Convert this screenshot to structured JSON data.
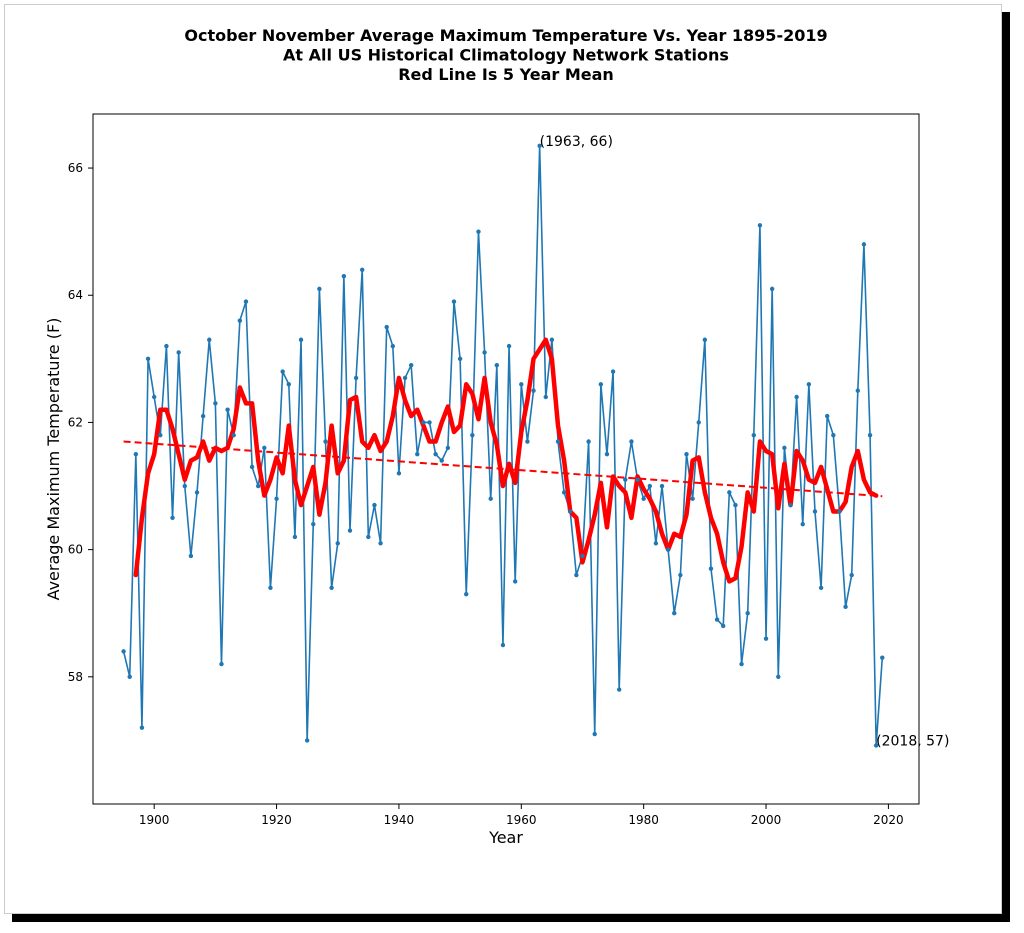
{
  "chart_data": {
    "type": "line",
    "title_lines": [
      "October November Average Maximum Temperature Vs. Year 1895-2019",
      "At All US Historical Climatology Network Stations",
      "Red Line Is 5 Year Mean"
    ],
    "xlabel": "Year",
    "ylabel": "Average Maximum Temperature (F)",
    "xlim": [
      1890,
      2025
    ],
    "ylim": [
      56.0,
      66.85
    ],
    "xticks": [
      1900,
      1920,
      1940,
      1960,
      1980,
      2000,
      2020
    ],
    "yticks": [
      58,
      60,
      62,
      64,
      66
    ],
    "grid": false,
    "colors": {
      "raw": "#1f77b4",
      "mean": "#ff0000",
      "trend": "#ff0000"
    },
    "annotations": [
      {
        "text": "(1963, 66)",
        "x": 1963,
        "y": 66.35
      },
      {
        "text": "(2018, 57)",
        "x": 2018,
        "y": 56.92
      }
    ],
    "series": [
      {
        "style": "line-markers",
        "x": [
          1895,
          1896,
          1897,
          1898,
          1899,
          1900,
          1901,
          1902,
          1903,
          1904,
          1905,
          1906,
          1907,
          1908,
          1909,
          1910,
          1911,
          1912,
          1913,
          1914,
          1915,
          1916,
          1917,
          1918,
          1919,
          1920,
          1921,
          1922,
          1923,
          1924,
          1925,
          1926,
          1927,
          1928,
          1929,
          1930,
          1931,
          1932,
          1933,
          1934,
          1935,
          1936,
          1937,
          1938,
          1939,
          1940,
          1941,
          1942,
          1943,
          1944,
          1945,
          1946,
          1947,
          1948,
          1949,
          1950,
          1951,
          1952,
          1953,
          1954,
          1955,
          1956,
          1957,
          1958,
          1959,
          1960,
          1961,
          1962,
          1963,
          1964,
          1965,
          1966,
          1967,
          1968,
          1969,
          1970,
          1971,
          1972,
          1973,
          1974,
          1975,
          1976,
          1977,
          1978,
          1979,
          1980,
          1981,
          1982,
          1983,
          1984,
          1985,
          1986,
          1987,
          1988,
          1989,
          1990,
          1991,
          1992,
          1993,
          1994,
          1995,
          1996,
          1997,
          1998,
          1999,
          2000,
          2001,
          2002,
          2003,
          2004,
          2005,
          2006,
          2007,
          2008,
          2009,
          2010,
          2011,
          2012,
          2013,
          2014,
          2015,
          2016,
          2017,
          2018,
          2019
        ],
        "y": [
          58.4,
          58.0,
          61.5,
          57.2,
          63.0,
          62.4,
          61.8,
          63.2,
          60.5,
          63.1,
          61.0,
          59.9,
          60.9,
          62.1,
          63.3,
          62.3,
          58.2,
          62.2,
          61.8,
          63.6,
          63.9,
          61.3,
          61.0,
          61.6,
          59.4,
          60.8,
          62.8,
          62.6,
          60.2,
          63.3,
          57.0,
          60.4,
          64.1,
          61.7,
          59.4,
          60.1,
          64.3,
          60.3,
          62.7,
          64.4,
          60.2,
          60.7,
          60.1,
          63.5,
          63.2,
          61.2,
          62.7,
          62.9,
          61.5,
          62.0,
          62.0,
          61.5,
          61.4,
          61.6,
          63.9,
          63.0,
          59.3,
          61.8,
          65.0,
          63.1,
          60.8,
          62.9,
          58.5,
          63.2,
          59.5,
          62.6,
          61.7,
          62.5,
          66.35,
          62.4,
          63.3,
          61.7,
          60.9,
          60.6,
          59.6,
          59.9,
          61.7,
          57.1,
          62.6,
          61.5,
          62.8,
          57.8,
          61.1,
          61.7,
          61.1,
          60.8,
          61.0,
          60.1,
          61.0,
          60.0,
          59.0,
          59.6,
          61.5,
          60.8,
          62.0,
          63.3,
          59.7,
          58.9,
          58.8,
          60.9,
          60.7,
          58.2,
          59.0,
          61.8,
          65.1,
          58.6,
          64.1,
          58.0,
          61.6,
          60.7,
          62.4,
          60.4,
          62.6,
          60.6,
          59.4,
          62.1,
          61.8,
          60.6,
          59.1,
          59.6,
          62.5,
          64.8,
          61.8,
          56.92,
          58.3
        ]
      },
      {
        "style": "thick-line",
        "x": [
          1897,
          1898,
          1899,
          1900,
          1901,
          1902,
          1903,
          1904,
          1905,
          1906,
          1907,
          1908,
          1909,
          1910,
          1911,
          1912,
          1913,
          1914,
          1915,
          1916,
          1917,
          1918,
          1919,
          1920,
          1921,
          1922,
          1923,
          1924,
          1925,
          1926,
          1927,
          1928,
          1929,
          1930,
          1931,
          1932,
          1933,
          1934,
          1935,
          1936,
          1937,
          1938,
          1939,
          1940,
          1941,
          1942,
          1943,
          1944,
          1945,
          1946,
          1947,
          1948,
          1949,
          1950,
          1951,
          1952,
          1953,
          1954,
          1955,
          1956,
          1957,
          1958,
          1959,
          1960,
          1961,
          1962,
          1963,
          1964,
          1965,
          1966,
          1967,
          1968,
          1969,
          1970,
          1971,
          1972,
          1973,
          1974,
          1975,
          1976,
          1977,
          1978,
          1979,
          1980,
          1981,
          1982,
          1983,
          1984,
          1985,
          1986,
          1987,
          1988,
          1989,
          1990,
          1991,
          1992,
          1993,
          1994,
          1995,
          1996,
          1997,
          1998,
          1999,
          2000,
          2001,
          2002,
          2003,
          2004,
          2005,
          2006,
          2007,
          2008,
          2009,
          2010,
          2011,
          2012,
          2013,
          2014,
          2015,
          2016,
          2017,
          2018
        ],
        "y": [
          59.6,
          60.5,
          61.2,
          61.5,
          62.2,
          62.2,
          61.9,
          61.5,
          61.1,
          61.4,
          61.45,
          61.7,
          61.4,
          61.6,
          61.55,
          61.6,
          61.9,
          62.55,
          62.3,
          62.3,
          61.4,
          60.85,
          61.1,
          61.45,
          61.2,
          61.95,
          61.1,
          60.7,
          61.0,
          61.3,
          60.55,
          61.05,
          61.95,
          61.2,
          61.4,
          62.35,
          62.4,
          61.7,
          61.6,
          61.8,
          61.55,
          61.7,
          62.1,
          62.7,
          62.35,
          62.1,
          62.2,
          61.95,
          61.7,
          61.7,
          62.0,
          62.25,
          61.85,
          61.95,
          62.6,
          62.45,
          62.05,
          62.7,
          62.0,
          61.65,
          61.0,
          61.35,
          61.05,
          61.85,
          62.35,
          63.0,
          63.15,
          63.3,
          63.0,
          61.95,
          61.4,
          60.6,
          60.5,
          59.8,
          60.15,
          60.55,
          61.05,
          60.35,
          61.15,
          61.0,
          60.9,
          60.5,
          61.15,
          60.95,
          60.8,
          60.6,
          60.25,
          60.0,
          60.25,
          60.2,
          60.55,
          61.4,
          61.45,
          60.9,
          60.5,
          60.25,
          59.8,
          59.5,
          59.55,
          60.05,
          60.9,
          60.6,
          61.7,
          61.55,
          61.5,
          60.65,
          61.35,
          60.7,
          61.55,
          61.4,
          61.1,
          61.05,
          61.3,
          60.95,
          60.6,
          60.6,
          60.75,
          61.3,
          61.55,
          61.1,
          60.9,
          60.85
        ]
      },
      {
        "style": "dashed-trend",
        "x": [
          1895,
          2019
        ],
        "y": [
          61.7,
          60.84
        ]
      }
    ]
  }
}
